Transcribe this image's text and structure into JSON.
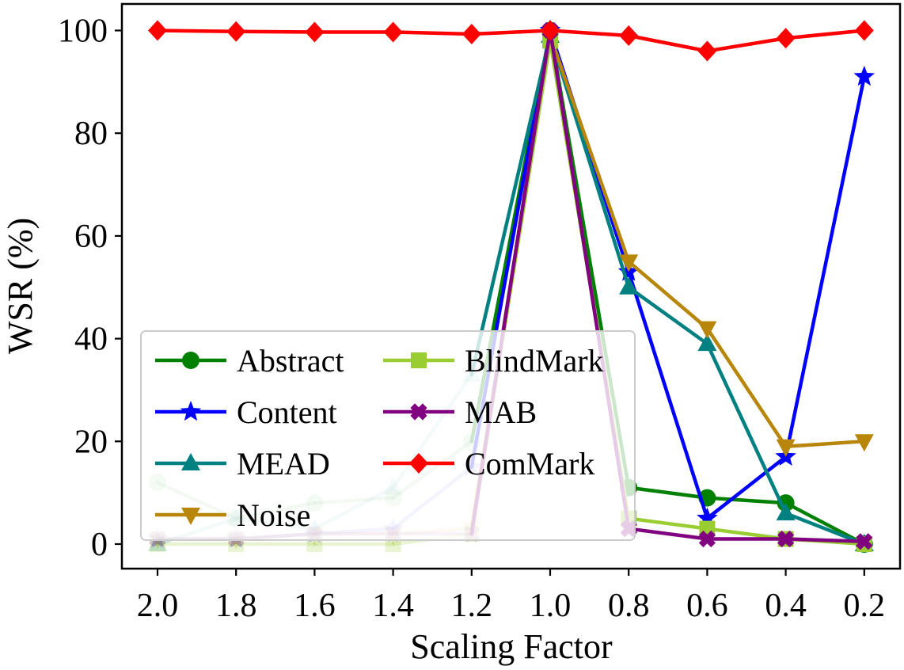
{
  "chart_data": {
    "type": "line",
    "title": "",
    "xlabel": "Scaling Factor",
    "ylabel": "WSR (%)",
    "categories": [
      "2.0",
      "1.8",
      "1.6",
      "1.4",
      "1.2",
      "1.0",
      "0.8",
      "0.6",
      "0.4",
      "0.2"
    ],
    "ylim": [
      -4,
      105
    ],
    "yticks": [
      "0",
      "20",
      "40",
      "60",
      "80",
      "100"
    ],
    "grid": false,
    "legend_position": "lower-left",
    "series": [
      {
        "name": "Abstract",
        "color": "#008000",
        "marker": "circle",
        "values": [
          12,
          5,
          8,
          9,
          20,
          100,
          11,
          9,
          8,
          0
        ]
      },
      {
        "name": "Content",
        "color": "#0000ff",
        "marker": "star",
        "values": [
          1,
          1,
          2,
          3,
          15,
          100,
          53,
          5,
          17,
          91
        ]
      },
      {
        "name": "MEAD",
        "color": "#008080",
        "marker": "triangle",
        "values": [
          0,
          5,
          3,
          11,
          33,
          99,
          50,
          39,
          6,
          0
        ]
      },
      {
        "name": "Noise",
        "color": "#b8860b",
        "marker": "tri-down",
        "values": [
          1,
          1,
          2,
          2,
          3,
          99,
          55,
          42,
          19,
          20
        ]
      },
      {
        "name": "BlindMark",
        "color": "#9acd32",
        "marker": "square",
        "values": [
          0,
          0,
          0,
          0,
          2,
          98,
          5,
          3,
          1,
          0
        ]
      },
      {
        "name": "MAB",
        "color": "#800080",
        "marker": "x-thick",
        "values": [
          1,
          1,
          2,
          2,
          2,
          100,
          3,
          1,
          1,
          0.5
        ]
      },
      {
        "name": "ComMark",
        "color": "#ff0000",
        "marker": "diamond",
        "values": [
          100,
          99.8,
          99.7,
          99.7,
          99.3,
          100,
          99,
          96,
          98.5,
          100
        ]
      }
    ],
    "faded_until_index": 5
  }
}
